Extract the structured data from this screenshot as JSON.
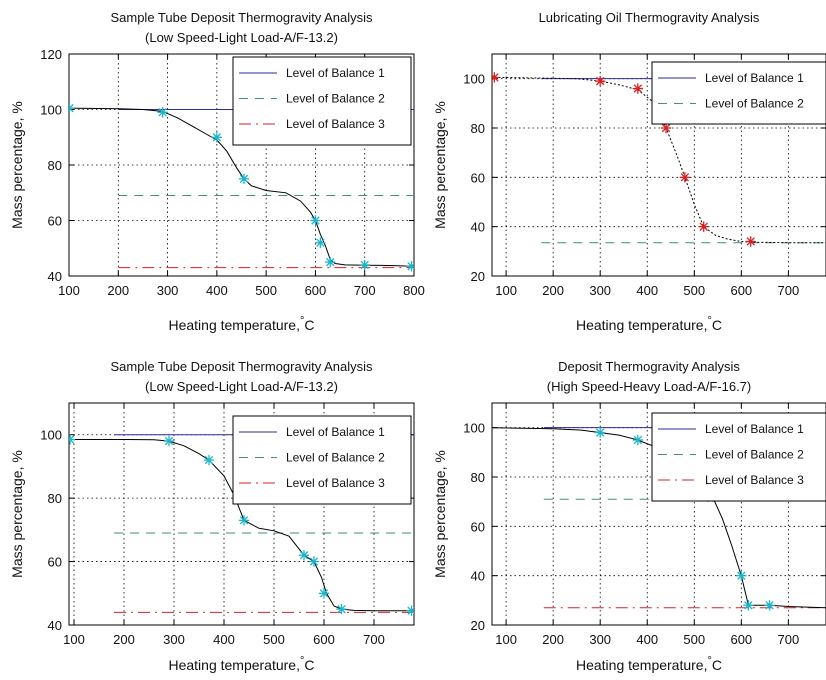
{
  "colors": {
    "balance1": "#2b2b9e",
    "balance2": "#3d8f87",
    "balance3": "#d42222",
    "curve": "#000000",
    "marker_cyan": "#1eb4c8",
    "marker_red": "#d42222"
  },
  "chart_data": [
    {
      "type": "line",
      "title": "Sample Tube Deposit Thermogravity Analysis",
      "subtitle": "(Low Speed-Light Load-A/F-13.2)",
      "xlabel": "Heating temperature,",
      "xlabel_unit": "C",
      "xlabel_degree": "°",
      "ylabel": "Mass percentage, %",
      "xlim": [
        100,
        800
      ],
      "ylim": [
        40,
        120
      ],
      "xticks": [
        "100",
        "200",
        "300",
        "400",
        "500",
        "600",
        "700",
        "800"
      ],
      "yticks": [
        "40",
        "60",
        "80",
        "100",
        "120"
      ],
      "grid": true,
      "legend_position": "top-right",
      "marker_color": "cyan",
      "curve_style": "solid",
      "curve": {
        "x": [
          100,
          200,
          250,
          290,
          320,
          350,
          380,
          400,
          420,
          440,
          455,
          470,
          500,
          540,
          570,
          590,
          600,
          610,
          620,
          630,
          640,
          660,
          700,
          750,
          800
        ],
        "y": [
          100.5,
          100.3,
          100,
          99.3,
          97,
          94,
          91,
          89,
          85,
          79,
          75,
          72.5,
          70.8,
          70,
          67,
          63,
          60,
          55,
          51,
          46,
          44.5,
          44,
          43.9,
          43.8,
          43.5
        ]
      },
      "markers": {
        "x": [
          101,
          290,
          400,
          455,
          600,
          610,
          630,
          700,
          795
        ],
        "y": [
          100.5,
          99,
          90,
          75,
          60,
          52,
          45,
          44,
          43.5
        ]
      },
      "series": [
        {
          "name": "Level of Balance 1",
          "style": "solid",
          "value": 100,
          "x_range": [
            200,
            800
          ]
        },
        {
          "name": "Level of Balance 2",
          "style": "dashed",
          "value": 69,
          "x_range": [
            200,
            800
          ]
        },
        {
          "name": "Level of Balance 3",
          "style": "dashdot",
          "value": 43,
          "x_range": [
            200,
            800
          ]
        }
      ]
    },
    {
      "type": "line",
      "title": "Lubricating Oil Thermogravity Analysis",
      "subtitle": "",
      "xlabel": "Heating temperature,",
      "xlabel_unit": "C",
      "xlabel_degree": "°",
      "ylabel": "Mass percentage, %",
      "xlim": [
        70,
        780
      ],
      "ylim": [
        20,
        110
      ],
      "xticks": [
        "100",
        "200",
        "300",
        "400",
        "500",
        "600",
        "700"
      ],
      "yticks": [
        "20",
        "40",
        "60",
        "80",
        "100"
      ],
      "grid": true,
      "legend_position": "top-right",
      "marker_color": "red",
      "curve_style": "dotted",
      "curve": {
        "x": [
          75,
          150,
          250,
          300,
          340,
          380,
          410,
          440,
          465,
          480,
          500,
          520,
          545,
          570,
          600,
          620,
          700,
          780
        ],
        "y": [
          100.5,
          100.3,
          100,
          99,
          97.5,
          95.5,
          91,
          80,
          68,
          60,
          49,
          40,
          36.5,
          35,
          34,
          33.7,
          33.5,
          33.5
        ]
      },
      "markers": {
        "x": [
          75,
          300,
          380,
          440,
          480,
          520,
          620
        ],
        "y": [
          100.5,
          99,
          96,
          80,
          60,
          40,
          34
        ]
      },
      "series": [
        {
          "name": "Level of Balance 1",
          "style": "solid",
          "value": 100,
          "x_range": [
            175,
            780
          ]
        },
        {
          "name": "Level of Balance 2",
          "style": "dashed",
          "value": 33.5,
          "x_range": [
            175,
            780
          ]
        }
      ]
    },
    {
      "type": "line",
      "title": "Sample Tube Deposit Thermogravity Analysis",
      "subtitle": "(Low Speed-Light Load-A/F-13.2)",
      "xlabel": "Heating temperature,",
      "xlabel_unit": "C",
      "xlabel_degree": "°",
      "ylabel": "Mass percentage, %",
      "xlim": [
        90,
        780
      ],
      "ylim": [
        40,
        110
      ],
      "xticks": [
        "100",
        "200",
        "300",
        "400",
        "500",
        "600",
        "700"
      ],
      "yticks": [
        "40",
        "60",
        "80",
        "100"
      ],
      "grid": true,
      "legend_position": "top-right",
      "marker_color": "cyan",
      "curve_style": "solid",
      "curve": {
        "x": [
          92,
          200,
          260,
          290,
          320,
          350,
          370,
          400,
          420,
          440,
          470,
          500,
          530,
          560,
          580,
          595,
          605,
          620,
          635,
          660,
          700,
          780
        ],
        "y": [
          98.5,
          98.5,
          98.4,
          98,
          96.5,
          94,
          92,
          87,
          81,
          73,
          70.5,
          69.7,
          68,
          62,
          60,
          55,
          50,
          46,
          45,
          44.6,
          44.5,
          44.5
        ]
      },
      "markers": {
        "x": [
          92,
          290,
          370,
          440,
          560,
          580,
          600,
          635,
          775
        ],
        "y": [
          98.5,
          98,
          92,
          73,
          62,
          60,
          50,
          45,
          44.5
        ]
      },
      "series": [
        {
          "name": "Level of Balance 1",
          "style": "solid",
          "value": 100,
          "x_range": [
            180,
            780
          ]
        },
        {
          "name": "Level of Balance 2",
          "style": "dashed",
          "value": 69,
          "x_range": [
            180,
            780
          ]
        },
        {
          "name": "Level of Balance 3",
          "style": "dashdot",
          "value": 44,
          "x_range": [
            180,
            780
          ]
        }
      ]
    },
    {
      "type": "line",
      "title": "Deposit Thermogravity Analysis",
      "subtitle": "(High Speed-Heavy Load-A/F-16.7)",
      "xlabel": "Heating temperature,",
      "xlabel_unit": "C",
      "xlabel_degree": "°",
      "ylabel": "Mass percentage, %",
      "xlim": [
        70,
        780
      ],
      "ylim": [
        20,
        110
      ],
      "xticks": [
        "100",
        "200",
        "300",
        "400",
        "500",
        "600",
        "700"
      ],
      "yticks": [
        "20",
        "40",
        "60",
        "80",
        "100"
      ],
      "grid": true,
      "legend_position": "top-right",
      "marker_color": "cyan",
      "curve_style": "solid",
      "curve": {
        "x": [
          72,
          200,
          260,
          300,
          340,
          380,
          420,
          460,
          500,
          520,
          530,
          540,
          560,
          580,
          600,
          615,
          630,
          660,
          700,
          780
        ],
        "y": [
          100,
          99.6,
          99,
          98,
          97,
          95,
          92,
          88,
          80,
          74,
          72,
          71.5,
          63,
          52,
          40,
          28,
          28,
          28,
          27.5,
          27
        ]
      },
      "markers": {
        "x": [
          300,
          380,
          530,
          540,
          600,
          615,
          660
        ],
        "y": [
          98,
          95,
          72,
          72,
          40,
          28,
          28
        ]
      },
      "series": [
        {
          "name": "Level of Balance 1",
          "style": "solid",
          "value": 100,
          "x_range": [
            180,
            780
          ]
        },
        {
          "name": "Level of Balance 2",
          "style": "dashed",
          "value": 71,
          "x_range": [
            180,
            780
          ]
        },
        {
          "name": "Level of Balance 3",
          "style": "dashdot",
          "value": 27,
          "x_range": [
            180,
            780
          ]
        }
      ]
    }
  ]
}
